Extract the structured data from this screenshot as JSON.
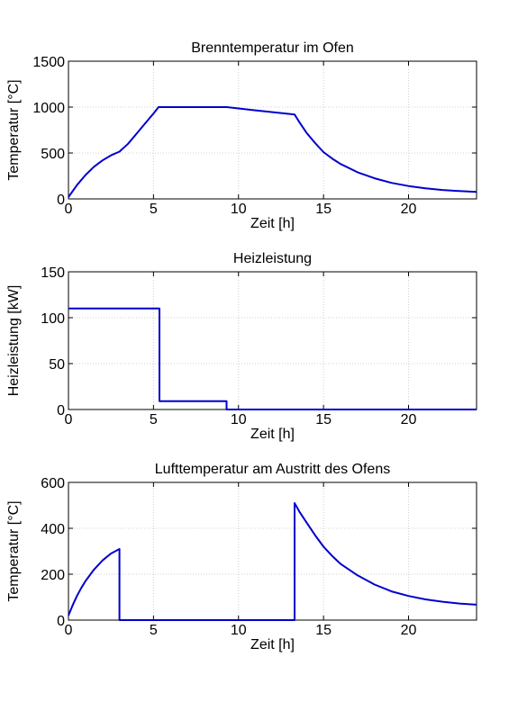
{
  "chart_data": [
    {
      "type": "line",
      "title": "Brenntemperatur im Ofen",
      "xlabel": "Zeit [h]",
      "ylabel": "Temperatur [°C]",
      "xlim": [
        0,
        24
      ],
      "ylim": [
        0,
        1500
      ],
      "xticks": [
        0,
        5,
        10,
        15,
        20
      ],
      "yticks": [
        0,
        500,
        1000,
        1500
      ],
      "grid": true,
      "series": [
        {
          "color": "#0000cc",
          "x": [
            0,
            0.5,
            1,
            1.5,
            2,
            2.5,
            3,
            3.5,
            4,
            4.5,
            5,
            5.3,
            6,
            7,
            8,
            9,
            9.3,
            10,
            11,
            12,
            13,
            13.3,
            13.6,
            14,
            14.5,
            15,
            15.5,
            16,
            17,
            18,
            19,
            20,
            21,
            22,
            23,
            24
          ],
          "y": [
            20,
            150,
            260,
            350,
            420,
            475,
            515,
            600,
            710,
            820,
            930,
            1000,
            1000,
            1000,
            1000,
            1000,
            1000,
            985,
            965,
            945,
            925,
            920,
            830,
            720,
            610,
            510,
            440,
            380,
            290,
            225,
            175,
            140,
            115,
            97,
            85,
            75
          ]
        }
      ]
    },
    {
      "type": "line",
      "title": "Heizleistung",
      "xlabel": "Zeit [h]",
      "ylabel": "Heizleistung [kW]",
      "xlim": [
        0,
        24
      ],
      "ylim": [
        0,
        150
      ],
      "xticks": [
        0,
        5,
        10,
        15,
        20
      ],
      "yticks": [
        0,
        50,
        100,
        150
      ],
      "grid": true,
      "series": [
        {
          "color": "#0000cc",
          "x": [
            0,
            5.35,
            5.35,
            9.3,
            9.3,
            24
          ],
          "y": [
            110,
            110,
            9,
            9,
            0,
            0
          ]
        }
      ]
    },
    {
      "type": "line",
      "title": "Lufttemperatur am Austritt des Ofens",
      "xlabel": "Zeit [h]",
      "ylabel": "Temperatur [°C]",
      "xlim": [
        0,
        24
      ],
      "ylim": [
        0,
        600
      ],
      "xticks": [
        0,
        5,
        10,
        15,
        20
      ],
      "yticks": [
        0,
        200,
        400,
        600
      ],
      "grid": true,
      "series": [
        {
          "color": "#0000cc",
          "x": [
            0,
            0.25,
            0.5,
            0.75,
            1,
            1.5,
            2,
            2.5,
            3,
            3,
            13.3,
            13.3,
            13.6,
            14,
            14.5,
            15,
            15.5,
            16,
            17,
            18,
            19,
            20,
            21,
            22,
            23,
            24
          ],
          "y": [
            20,
            65,
            105,
            140,
            170,
            220,
            260,
            290,
            310,
            0,
            0,
            510,
            470,
            425,
            370,
            320,
            280,
            245,
            195,
            155,
            125,
            105,
            90,
            80,
            72,
            67
          ]
        }
      ]
    }
  ]
}
